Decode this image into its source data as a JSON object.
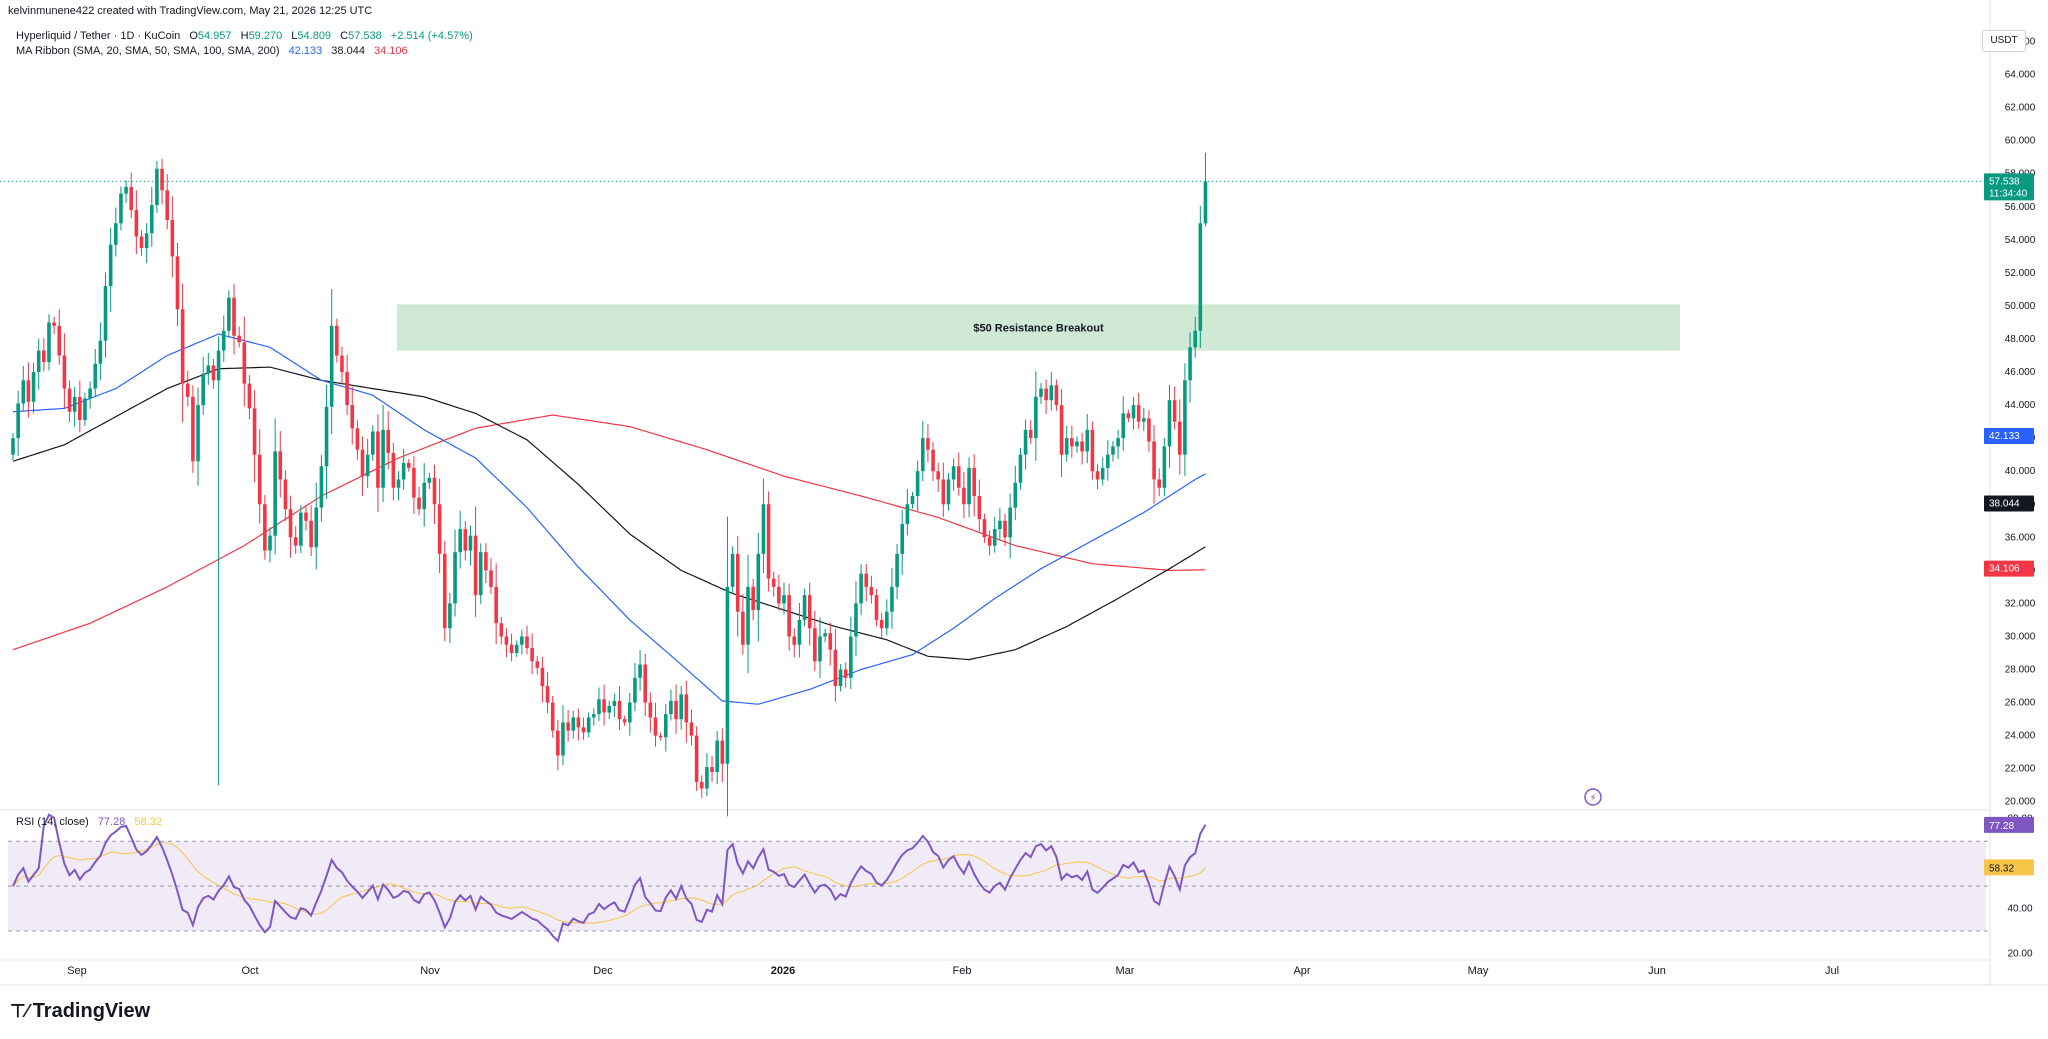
{
  "attribution": "kelvinmunene422 created with TradingView.com, May 21, 2026 12:25 UTC",
  "header": {
    "symbol": "Hyperliquid / Tether · 1D · KuCoin",
    "o_label": "O",
    "o": "54.957",
    "h_label": "H",
    "h": "59.270",
    "l_label": "L",
    "l": "54.809",
    "c_label": "C",
    "c": "57.538",
    "change": "+2.514 (+4.57%)"
  },
  "ma_legend": {
    "label": "MA Ribbon (SMA, 20, SMA, 50, SMA, 100, SMA, 200)",
    "v1": "42.133",
    "v2": "38.044",
    "v3": "34.106"
  },
  "rsi_legend": {
    "label": "RSI (14, close)",
    "v1": "77.28",
    "v2": "58.32"
  },
  "currency_button": "USDT",
  "footer_logo": "TradingView",
  "colors": {
    "up": "#089981",
    "down": "#f23645",
    "ma_blue": "#2962ff",
    "ma_black": "#131722",
    "ma_red": "#f23645",
    "rsi_line": "#7e57c2",
    "rsi_ma": "#f7c548",
    "zone": "#cfe9d4",
    "tag_green": "#089981",
    "tag_blue": "#2962ff",
    "tag_black": "#131722",
    "tag_red": "#f23645",
    "tag_purple": "#7e57c2",
    "tag_yellow": "#f7c548"
  },
  "chart_data": [
    {
      "type": "candlestick",
      "x_tick_labels": [
        "Sep",
        "Oct",
        "Nov",
        "Dec",
        "2026",
        "Feb",
        "Mar",
        "Apr",
        "May",
        "Jun",
        "Jul"
      ],
      "y_ticks": [
        20,
        22,
        24,
        26,
        28,
        30,
        32,
        34,
        36,
        38,
        40,
        42,
        44,
        46,
        48,
        50,
        52,
        54,
        56,
        58,
        60,
        62,
        64,
        66
      ],
      "y_tick_labels": [
        "20.000",
        "22.000",
        "24.000",
        "26.000",
        "28.000",
        "30.000",
        "32.000",
        "34.000",
        "36.000",
        "38.000",
        "40.000",
        "42.000",
        "44.000",
        "46.000",
        "48.000",
        "50.000",
        "52.000",
        "54.000",
        "56.000",
        "58.000",
        "60.000",
        "62.000",
        "64.000",
        "66.000"
      ],
      "ylim": [
        19.5,
        67
      ],
      "annotation": {
        "text": "$50 Resistance Breakout",
        "y_range": [
          47.3,
          50.1
        ]
      },
      "price_tag": {
        "value": "57.538",
        "countdown": "11:34:40",
        "y": 57.538
      },
      "ma_tags": [
        {
          "value": "42.133",
          "y": 42.133,
          "color_key": "tag_blue"
        },
        {
          "value": "38.044",
          "y": 38.044,
          "color_key": "tag_black"
        },
        {
          "value": "34.106",
          "y": 34.106,
          "color_key": "tag_red"
        }
      ],
      "closes": [
        42.0,
        44.1,
        45.5,
        44.2,
        46.0,
        47.3,
        46.6,
        49.0,
        48.8,
        47.0,
        45.0,
        43.6,
        44.5,
        43.1,
        44.4,
        45.0,
        46.5,
        47.9,
        51.2,
        53.7,
        55.0,
        56.8,
        57.2,
        55.8,
        54.2,
        53.5,
        54.4,
        56.1,
        58.3,
        57.0,
        55.2,
        53.0,
        49.8,
        45.3,
        44.5,
        40.6,
        44.0,
        45.9,
        46.4,
        45.5,
        47.3,
        48.5,
        50.5,
        48.2,
        47.8,
        45.3,
        43.8,
        41.0,
        38.0,
        35.2,
        36.1,
        41.2,
        39.5,
        37.7,
        36.0,
        35.5,
        37.5,
        37.0,
        35.4,
        37.8,
        40.3,
        43.9,
        48.8,
        47.0,
        46.0,
        44.0,
        42.6,
        41.3,
        39.7,
        41.0,
        42.4,
        39.0,
        42.5,
        41.1,
        39.0,
        39.5,
        40.5,
        40.2,
        38.4,
        37.7,
        39.3,
        39.6,
        38.0,
        35.0,
        30.5,
        32.0,
        35.1,
        36.5,
        35.2,
        36.1,
        32.5,
        35.1,
        34.0,
        33.0,
        30.8,
        30.0,
        29.5,
        29.0,
        29.5,
        30.0,
        29.3,
        28.5,
        28.1,
        27.0,
        26.0,
        24.3,
        22.8,
        24.8,
        24.3,
        25.1,
        24.5,
        24.2,
        25.1,
        25.3,
        26.2,
        25.4,
        25.8,
        26.1,
        25.0,
        24.8,
        26.0,
        27.5,
        28.3,
        26.0,
        25.1,
        24.0,
        23.9,
        25.3,
        26.1,
        25.0,
        26.5,
        24.8,
        24.0,
        21.2,
        20.8,
        22.1,
        21.8,
        23.7,
        22.3,
        33.0,
        35.0,
        31.5,
        29.5,
        33.0,
        31.6,
        35.0,
        38.0,
        33.5,
        33.0,
        32.0,
        32.5,
        30.0,
        29.5,
        31.0,
        32.5,
        30.5,
        28.5,
        30.0,
        30.2,
        29.2,
        27.0,
        28.0,
        27.5,
        30.0,
        32.0,
        33.8,
        33.0,
        32.5,
        31.0,
        30.5,
        31.5,
        33.0,
        35.0,
        36.8,
        38.0,
        38.5,
        40.0,
        42.0,
        41.3,
        40.0,
        39.5,
        38.0,
        39.5,
        40.3,
        39.0,
        38.0,
        40.2,
        38.5,
        37.1,
        36.0,
        35.5,
        36.5,
        37.0,
        36.0,
        37.8,
        39.3,
        41.0,
        42.5,
        42.0,
        44.5,
        45.0,
        44.3,
        45.2,
        44.0,
        41.0,
        42.0,
        41.5,
        41.8,
        41.2,
        42.5,
        40.0,
        39.5,
        40.2,
        41.0,
        41.5,
        42.0,
        43.5,
        43.2,
        44.0,
        43.0,
        43.2,
        41.8,
        39.5,
        39.0,
        41.5,
        44.3,
        43.0,
        41.0,
        45.5,
        47.5,
        48.5,
        55.0,
        57.538
      ],
      "ma_blue_key_points": [
        [
          0,
          43.6
        ],
        [
          10,
          43.8
        ],
        [
          20,
          45.0
        ],
        [
          30,
          47.0
        ],
        [
          40,
          48.3
        ],
        [
          50,
          47.5
        ],
        [
          60,
          45.5
        ],
        [
          70,
          44.6
        ],
        [
          80,
          42.5
        ],
        [
          90,
          40.8
        ],
        [
          100,
          37.8
        ],
        [
          110,
          34.2
        ],
        [
          120,
          31.0
        ],
        [
          130,
          28.3
        ],
        [
          138,
          26.1
        ],
        [
          145,
          25.9
        ],
        [
          155,
          26.8
        ],
        [
          165,
          28.0
        ],
        [
          175,
          28.9
        ],
        [
          183,
          30.5
        ],
        [
          191,
          32.3
        ],
        [
          200,
          34.1
        ],
        [
          210,
          35.8
        ],
        [
          220,
          37.5
        ],
        [
          230,
          39.5
        ],
        [
          240,
          41.2
        ],
        [
          248,
          42.133
        ]
      ],
      "ma_black_key_points": [
        [
          0,
          40.6
        ],
        [
          10,
          41.6
        ],
        [
          20,
          43.3
        ],
        [
          30,
          45.0
        ],
        [
          40,
          46.2
        ],
        [
          50,
          46.3
        ],
        [
          60,
          45.5
        ],
        [
          70,
          45.0
        ],
        [
          80,
          44.5
        ],
        [
          90,
          43.5
        ],
        [
          100,
          41.9
        ],
        [
          110,
          39.2
        ],
        [
          120,
          36.2
        ],
        [
          130,
          34.0
        ],
        [
          140,
          32.6
        ],
        [
          150,
          31.6
        ],
        [
          160,
          30.6
        ],
        [
          170,
          29.8
        ],
        [
          178,
          28.8
        ],
        [
          186,
          28.6
        ],
        [
          195,
          29.2
        ],
        [
          205,
          30.6
        ],
        [
          215,
          32.3
        ],
        [
          225,
          34.1
        ],
        [
          235,
          36.0
        ],
        [
          243,
          37.0
        ],
        [
          248,
          38.044
        ]
      ],
      "ma_red_key_points": [
        [
          0,
          29.2
        ],
        [
          15,
          30.8
        ],
        [
          30,
          33.0
        ],
        [
          45,
          35.5
        ],
        [
          60,
          38.5
        ],
        [
          75,
          40.8
        ],
        [
          90,
          42.6
        ],
        [
          105,
          43.4
        ],
        [
          120,
          42.7
        ],
        [
          135,
          41.3
        ],
        [
          150,
          39.7
        ],
        [
          165,
          38.5
        ],
        [
          180,
          37.2
        ],
        [
          195,
          35.5
        ],
        [
          210,
          34.4
        ],
        [
          225,
          34.0
        ],
        [
          248,
          34.106
        ]
      ],
      "spike_low": {
        "index": 40,
        "value": 21.0
      }
    },
    {
      "type": "line",
      "title": "RSI (14, close)",
      "y_ticks": [
        20,
        40,
        60,
        80
      ],
      "y_tick_labels": [
        "20.00",
        "40.00",
        "60.00",
        "80.00"
      ],
      "ylim": [
        18,
        83
      ],
      "band_levels": [
        30,
        50,
        70
      ],
      "last_values": {
        "rsi": 77.28,
        "rsi_ma": 58.32
      }
    }
  ]
}
